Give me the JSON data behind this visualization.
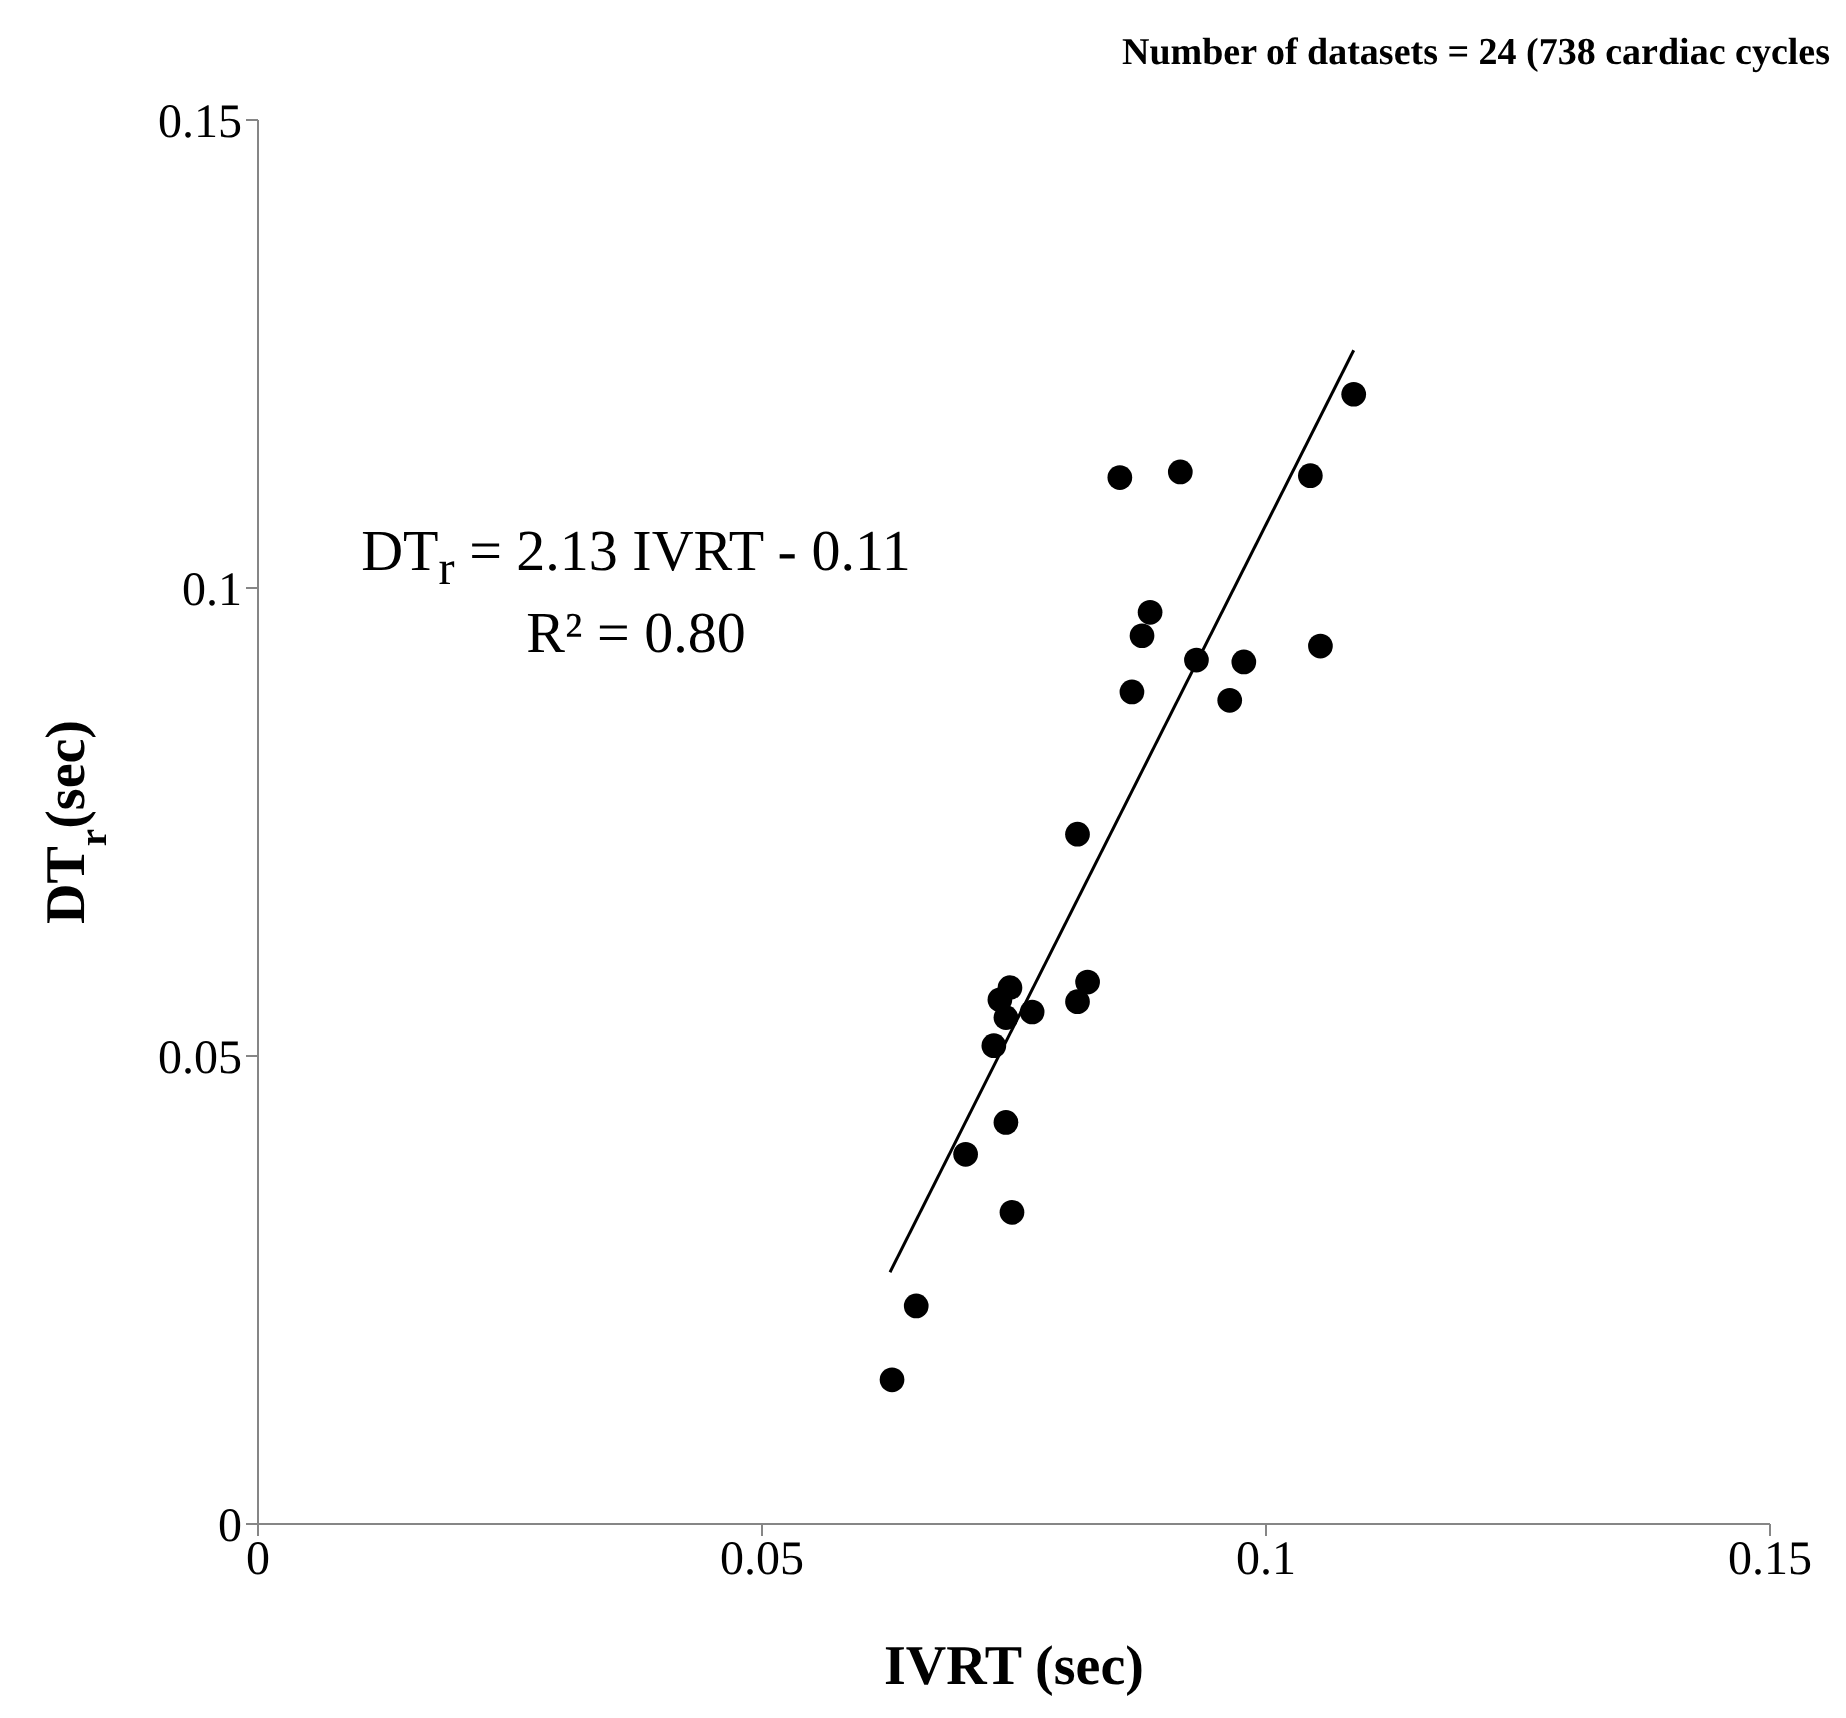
{
  "chart_data": {
    "type": "scatter",
    "title": "Number of datasets = 24 (738 cardiac cycles",
    "xlabel": "IVRT (sec)",
    "ylabel": "DT$_{r}$(sec)",
    "annotations": [
      "DT$_{r}$ = 2.13 IVRT - 0.11",
      "R² = 0.80"
    ],
    "xlim": [
      0,
      0.15
    ],
    "xticks": [
      0,
      0.05,
      0.1,
      0.15
    ],
    "ylim": [
      0,
      0.15
    ],
    "yticks": [
      0,
      0.05,
      0.1,
      0.15
    ],
    "marker": "circle",
    "series": [
      {
        "color": "#000000",
        "x": [
          0.0855,
          0.0915,
          0.1044,
          0.1087,
          0.0885,
          0.0877,
          0.0931,
          0.0978,
          0.1054,
          0.0867,
          0.0964,
          0.0813,
          0.0823,
          0.0813,
          0.0746,
          0.0736,
          0.0742,
          0.0768,
          0.073,
          0.0742,
          0.0702,
          0.0748,
          0.0653,
          0.0629
        ],
        "values": [
          0.1118,
          0.1124,
          0.112,
          0.1207,
          0.0974,
          0.0949,
          0.0923,
          0.0921,
          0.0938,
          0.0889,
          0.088,
          0.0737,
          0.0579,
          0.0558,
          0.0573,
          0.056,
          0.0541,
          0.0547,
          0.0511,
          0.0429,
          0.0395,
          0.0333,
          0.0233,
          0.0154
        ]
      },
      {
        "type": "line",
        "color": "#000000",
        "marker": "none",
        "line_style": "solid",
        "x": [
          0.0627,
          0.1087
        ],
        "values": [
          0.0269,
          0.1254
        ]
      }
    ]
  }
}
